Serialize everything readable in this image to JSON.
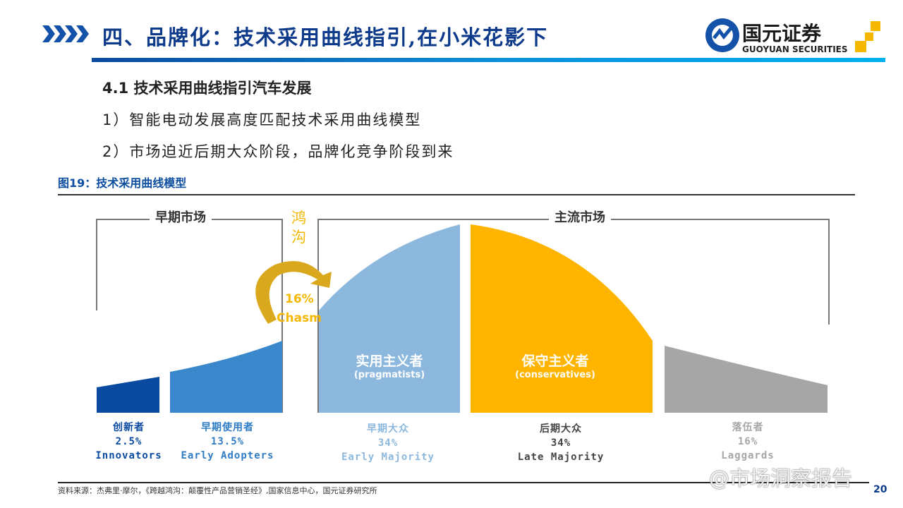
{
  "header": {
    "title": "四、品牌化：技术采用曲线指引,在小米花影下",
    "logo_cn": "国元证券",
    "logo_en": "GUOYUAN SECURITIES"
  },
  "content": {
    "h1": "4.1 技术采用曲线指引汽车发展",
    "h2": "1）智能电动发展高度匹配技术采用曲线模型",
    "h3": "2）市场迫近后期大众阶段，品牌化竞争阶段到来"
  },
  "figure": {
    "caption": "图19：技术采用曲线模型",
    "early_market": "早期市场",
    "main_market": "主流市场",
    "chasm_cn": "鸿沟",
    "chasm_pct": "16%",
    "chasm_en": "Chasm",
    "groups": [
      {
        "cn": "创新者",
        "pct": "2.5%",
        "en": "Innovators",
        "color": "#0a4aa0"
      },
      {
        "cn": "早期使用者",
        "pct": "13.5%",
        "en": "Early Adopters",
        "color": "#3a87cc"
      },
      {
        "cn": "早期大众",
        "pct": "34%",
        "en": "Early Majority",
        "color": "#8db8de",
        "inner_cn": "实用主义者",
        "inner_en": "(pragmatists)"
      },
      {
        "cn": "后期大众",
        "pct": "34%",
        "en": "Late Majority",
        "color": "#ffb400",
        "inner_cn": "保守主义者",
        "inner_en": "(conservatives)"
      },
      {
        "cn": "落伍者",
        "pct": "16%",
        "en": "Laggards",
        "color": "#a6a6a6"
      }
    ]
  },
  "footer": {
    "source": "资料来源：杰弗里·摩尔，《跨越鸿沟：颠覆性产品营销圣经》,国家信息中心，国元证券研究所",
    "page": "20",
    "watermark": "@市场洞察报告"
  }
}
